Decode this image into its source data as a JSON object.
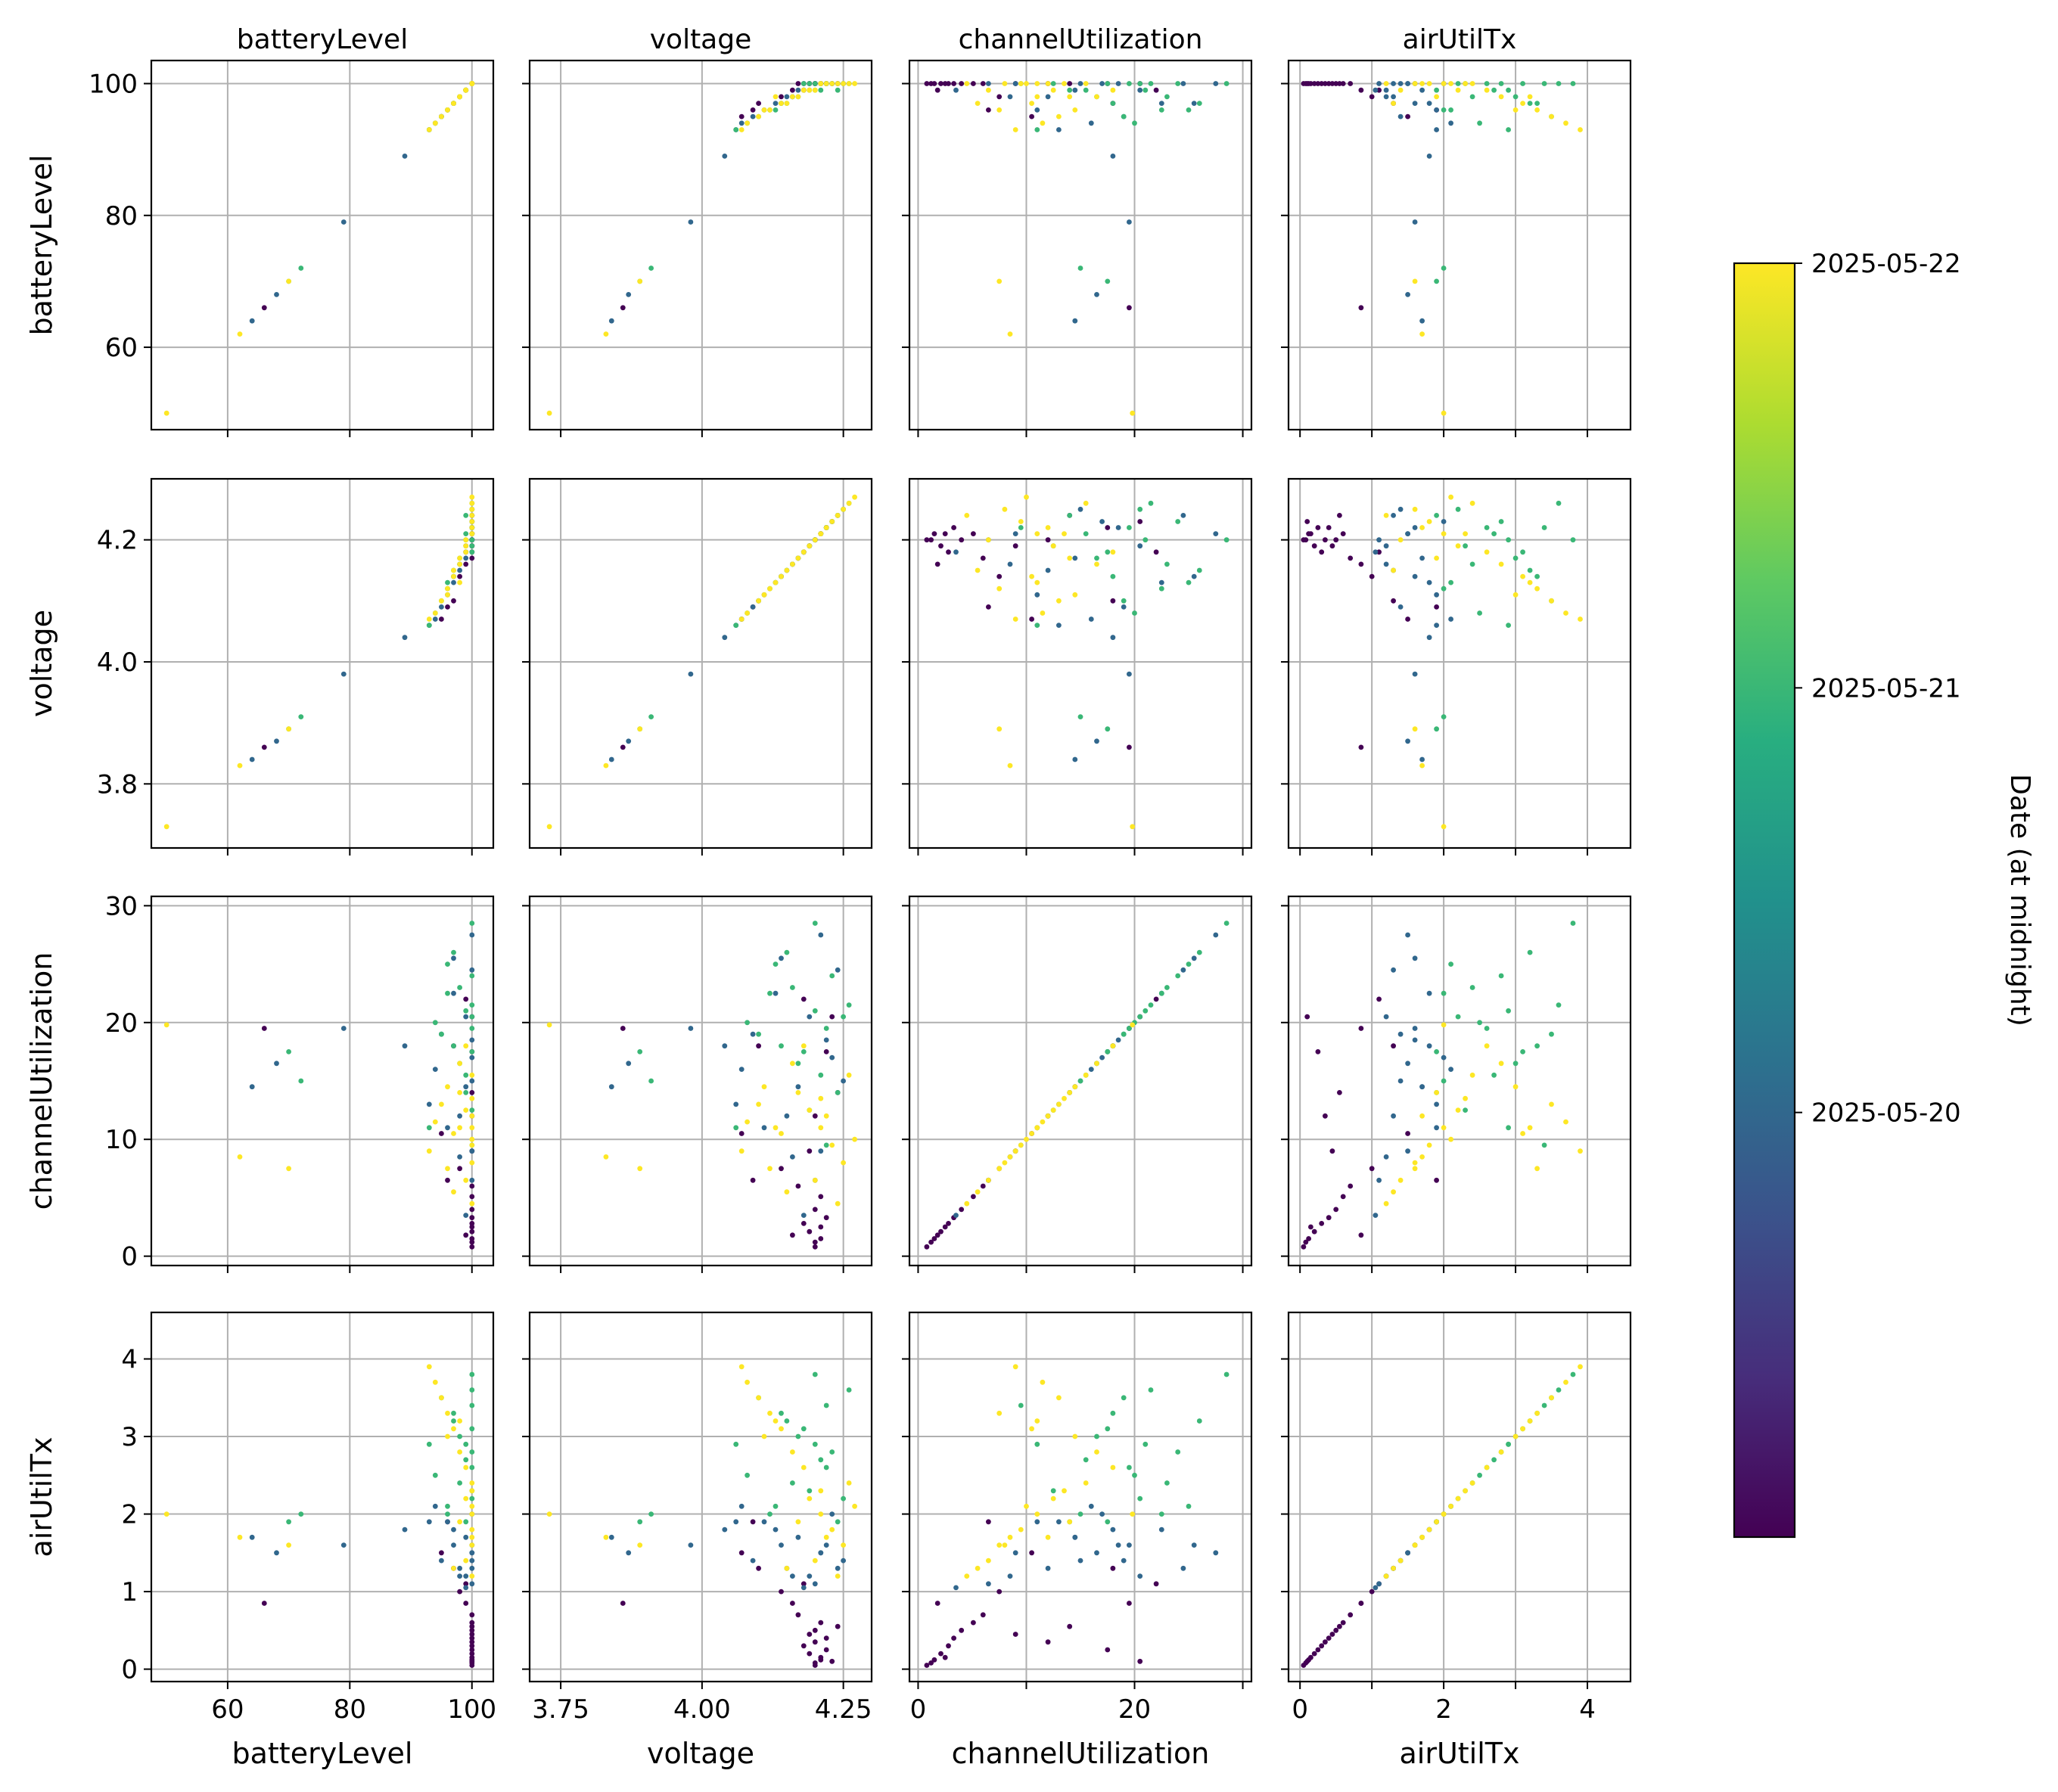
{
  "chart_data": {
    "type": "scatter",
    "kind": "pair-plot matrix",
    "variables": [
      "batteryLevel",
      "voltage",
      "channelUtilization",
      "airUtilTx"
    ],
    "column_titles": [
      "batteryLevel",
      "voltage",
      "channelUtilization",
      "airUtilTx"
    ],
    "row_labels": [
      "batteryLevel",
      "voltage",
      "channelUtilization",
      "airUtilTx"
    ],
    "x_labels": [
      "batteryLevel",
      "voltage",
      "channelUtilization",
      "airUtilTx"
    ],
    "axes": {
      "batteryLevel": {
        "lim": [
          47.5,
          103.5
        ],
        "ticks": [
          60,
          80,
          100
        ],
        "tick_labels_x": [
          "60",
          "80",
          "100"
        ],
        "tick_labels_y": [
          "60",
          "80",
          "100"
        ]
      },
      "voltage": {
        "lim": [
          3.695,
          4.3
        ],
        "ticks": [
          3.75,
          4.0,
          4.25
        ],
        "tick_labels_x": [
          "3.75",
          "4.00",
          "4.25"
        ],
        "y_ticks": [
          3.8,
          4.0,
          4.2
        ],
        "tick_labels_y": [
          "3.8",
          "4.0",
          "4.2"
        ]
      },
      "channelUtilization": {
        "lim": [
          -0.8,
          30.8
        ],
        "ticks": [
          0,
          10,
          20,
          30
        ],
        "tick_labels_x": [
          "0",
          "",
          "20",
          ""
        ],
        "tick_labels_y": [
          "0",
          "10",
          "20",
          "30"
        ]
      },
      "airUtilTx": {
        "lim": [
          -0.16,
          4.6
        ],
        "ticks": [
          0,
          1,
          2,
          3,
          4
        ],
        "tick_labels_x": [
          "0",
          "",
          "2",
          "",
          "4"
        ],
        "tick_labels_y": [
          "0",
          "1",
          "2",
          "3",
          "4"
        ]
      }
    },
    "grid": true,
    "colormap": "viridis",
    "colorbar": {
      "label": "Date (at midnight)",
      "range": [
        "2025-05-19",
        "2025-05-22"
      ],
      "ticks": [
        "2025-05-20",
        "2025-05-21",
        "2025-05-22"
      ]
    },
    "series": [
      {
        "date": "2025-05-19",
        "points": [
          [
            100,
            4.2,
            0.8,
            0.05
          ],
          [
            100,
            4.21,
            1.5,
            0.12
          ],
          [
            100,
            4.19,
            2.1,
            0.2
          ],
          [
            100,
            4.18,
            2.8,
            0.3
          ],
          [
            100,
            4.22,
            3.3,
            0.4
          ],
          [
            100,
            4.2,
            4.0,
            0.5
          ],
          [
            100,
            4.21,
            5.1,
            0.6
          ],
          [
            100,
            4.17,
            6.0,
            0.7
          ],
          [
            99,
            4.16,
            1.8,
            0.85
          ],
          [
            100,
            4.23,
            20.5,
            0.1
          ],
          [
            100,
            4.22,
            17.5,
            0.25
          ],
          [
            100,
            4.2,
            12.0,
            0.35
          ],
          [
            100,
            4.19,
            9.0,
            0.45
          ],
          [
            98,
            4.14,
            7.5,
            1.0
          ],
          [
            100,
            4.21,
            2.5,
            0.15
          ],
          [
            100,
            4.2,
            1.2,
            0.08
          ],
          [
            97,
            4.1,
            18.0,
            1.3
          ],
          [
            95,
            4.07,
            10.5,
            1.5
          ],
          [
            99,
            4.18,
            22.0,
            1.1
          ],
          [
            100,
            4.24,
            14.0,
            0.55
          ],
          [
            66,
            3.86,
            19.5,
            0.85
          ],
          [
            96,
            4.09,
            6.5,
            1.9
          ]
        ]
      },
      {
        "date": "2025-05-20",
        "points": [
          [
            100,
            4.25,
            15.0,
            1.4
          ],
          [
            100,
            4.22,
            18.5,
            1.6
          ],
          [
            99,
            4.19,
            20.5,
            1.2
          ],
          [
            98,
            4.15,
            12.0,
            1.3
          ],
          [
            97,
            4.13,
            22.5,
            1.8
          ],
          [
            100,
            4.21,
            9.0,
            1.5
          ],
          [
            99,
            4.17,
            14.5,
            1.7
          ],
          [
            96,
            4.11,
            11.0,
            1.9
          ],
          [
            95,
            4.09,
            19.0,
            1.4
          ],
          [
            100,
            4.24,
            24.5,
            1.3
          ],
          [
            94,
            4.07,
            16.0,
            2.1
          ],
          [
            100,
            4.2,
            6.5,
            1.1
          ],
          [
            98,
            4.16,
            8.5,
            1.2
          ],
          [
            97,
            4.14,
            25.5,
            1.6
          ],
          [
            93,
            4.06,
            13.0,
            1.9
          ],
          [
            100,
            4.23,
            17.0,
            2.0
          ],
          [
            64,
            3.84,
            14.5,
            1.7
          ],
          [
            68,
            3.87,
            16.5,
            1.5
          ],
          [
            79,
            3.98,
            19.5,
            1.6
          ],
          [
            89,
            4.04,
            18.0,
            1.8
          ],
          [
            99,
            4.18,
            3.5,
            1.05
          ],
          [
            100,
            4.21,
            27.5,
            1.5
          ]
        ]
      },
      {
        "date": "2025-05-21",
        "points": [
          [
            100,
            4.22,
            19.5,
            2.6
          ],
          [
            99,
            4.2,
            21.0,
            2.9
          ],
          [
            100,
            4.18,
            17.5,
            3.1
          ],
          [
            98,
            4.16,
            23.0,
            2.4
          ],
          [
            97,
            4.14,
            18.0,
            3.3
          ],
          [
            100,
            4.25,
            20.5,
            2.2
          ],
          [
            99,
            4.21,
            15.5,
            2.7
          ],
          [
            96,
            4.12,
            22.5,
            2.0
          ],
          [
            95,
            4.1,
            19.0,
            3.5
          ],
          [
            100,
            4.23,
            24.0,
            2.8
          ],
          [
            98,
            4.17,
            16.5,
            3.0
          ],
          [
            94,
            4.08,
            20.0,
            2.5
          ],
          [
            100,
            4.19,
            12.5,
            2.3
          ],
          [
            97,
            4.15,
            26.0,
            3.2
          ],
          [
            99,
            4.24,
            14.0,
            1.9
          ],
          [
            100,
            4.26,
            21.5,
            3.6
          ],
          [
            96,
            4.13,
            25.0,
            2.1
          ],
          [
            70,
            3.89,
            17.5,
            1.9
          ],
          [
            72,
            3.91,
            15.0,
            2.0
          ],
          [
            100,
            4.2,
            28.5,
            3.8
          ],
          [
            93,
            4.06,
            11.0,
            2.9
          ],
          [
            100,
            4.22,
            9.5,
            3.4
          ]
        ]
      },
      {
        "date": "2025-05-22",
        "points": [
          [
            100,
            4.21,
            11.0,
            2.0
          ],
          [
            100,
            4.23,
            9.5,
            1.8
          ],
          [
            99,
            4.19,
            12.5,
            2.2
          ],
          [
            100,
            4.25,
            8.0,
            1.6
          ],
          [
            98,
            4.17,
            14.0,
            1.9
          ],
          [
            97,
            4.14,
            10.5,
            3.1
          ],
          [
            96,
            4.12,
            7.5,
            3.3
          ],
          [
            95,
            4.1,
            13.0,
            3.5
          ],
          [
            100,
            4.26,
            15.5,
            2.4
          ],
          [
            99,
            4.2,
            6.5,
            1.4
          ],
          [
            94,
            4.08,
            11.5,
            3.7
          ],
          [
            100,
            4.27,
            10.0,
            2.1
          ],
          [
            98,
            4.16,
            16.5,
            2.8
          ],
          [
            97,
            4.15,
            5.5,
            1.3
          ],
          [
            100,
            4.22,
            12.0,
            1.7
          ],
          [
            99,
            4.18,
            18.0,
            2.6
          ],
          [
            93,
            4.07,
            9.0,
            3.9
          ],
          [
            96,
            4.11,
            14.5,
            3.0
          ],
          [
            100,
            4.24,
            4.5,
            1.2
          ],
          [
            50,
            3.73,
            19.8,
            2.0
          ],
          [
            62,
            3.83,
            8.5,
            1.7
          ],
          [
            70,
            3.89,
            7.5,
            1.6
          ],
          [
            100,
            4.21,
            13.5,
            2.3
          ],
          [
            98,
            4.13,
            11.0,
            3.2
          ]
        ]
      }
    ]
  }
}
